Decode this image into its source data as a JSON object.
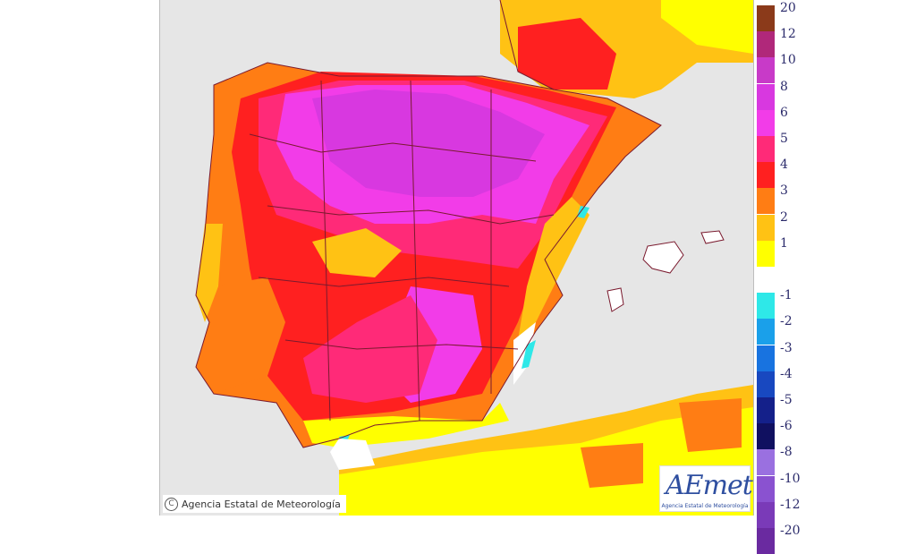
{
  "colors": {
    "sea": "#e6e6e6",
    "land_background": "#ffff00",
    "border": "#7a1a2e"
  },
  "legend": {
    "entries": [
      {
        "label": "20",
        "color": "#8b3a1a"
      },
      {
        "label": "12",
        "color": "#b0287a"
      },
      {
        "label": "10",
        "color": "#c83ac8"
      },
      {
        "label": "8",
        "color": "#d838e0"
      },
      {
        "label": "6",
        "color": "#f23ce8"
      },
      {
        "label": "5",
        "color": "#ff2a78"
      },
      {
        "label": "4",
        "color": "#ff2020"
      },
      {
        "label": "3",
        "color": "#ff7d14"
      },
      {
        "label": "2",
        "color": "#ffc214"
      },
      {
        "label": "1",
        "color": "#ffff00"
      },
      {
        "label": "",
        "color": "#ffffff"
      },
      {
        "label": "-1",
        "color": "#2ee8e8"
      },
      {
        "label": "-2",
        "color": "#1aa0ea"
      },
      {
        "label": "-3",
        "color": "#1873e0"
      },
      {
        "label": "-4",
        "color": "#1848c0"
      },
      {
        "label": "-5",
        "color": "#14208a"
      },
      {
        "label": "-6",
        "color": "#101060"
      },
      {
        "label": "-8",
        "color": "#9a70e0"
      },
      {
        "label": "-10",
        "color": "#8a52d0"
      },
      {
        "label": "-12",
        "color": "#7a3ab8"
      },
      {
        "label": "-20",
        "color": "#6a2aa0"
      }
    ]
  },
  "footer": {
    "copyright_symbol": "C",
    "copyright_text": "Agencia Estatal de Meteorología"
  },
  "logo": {
    "name": "AEmet",
    "subtitle": "Agencia Estatal de Meteorología"
  }
}
